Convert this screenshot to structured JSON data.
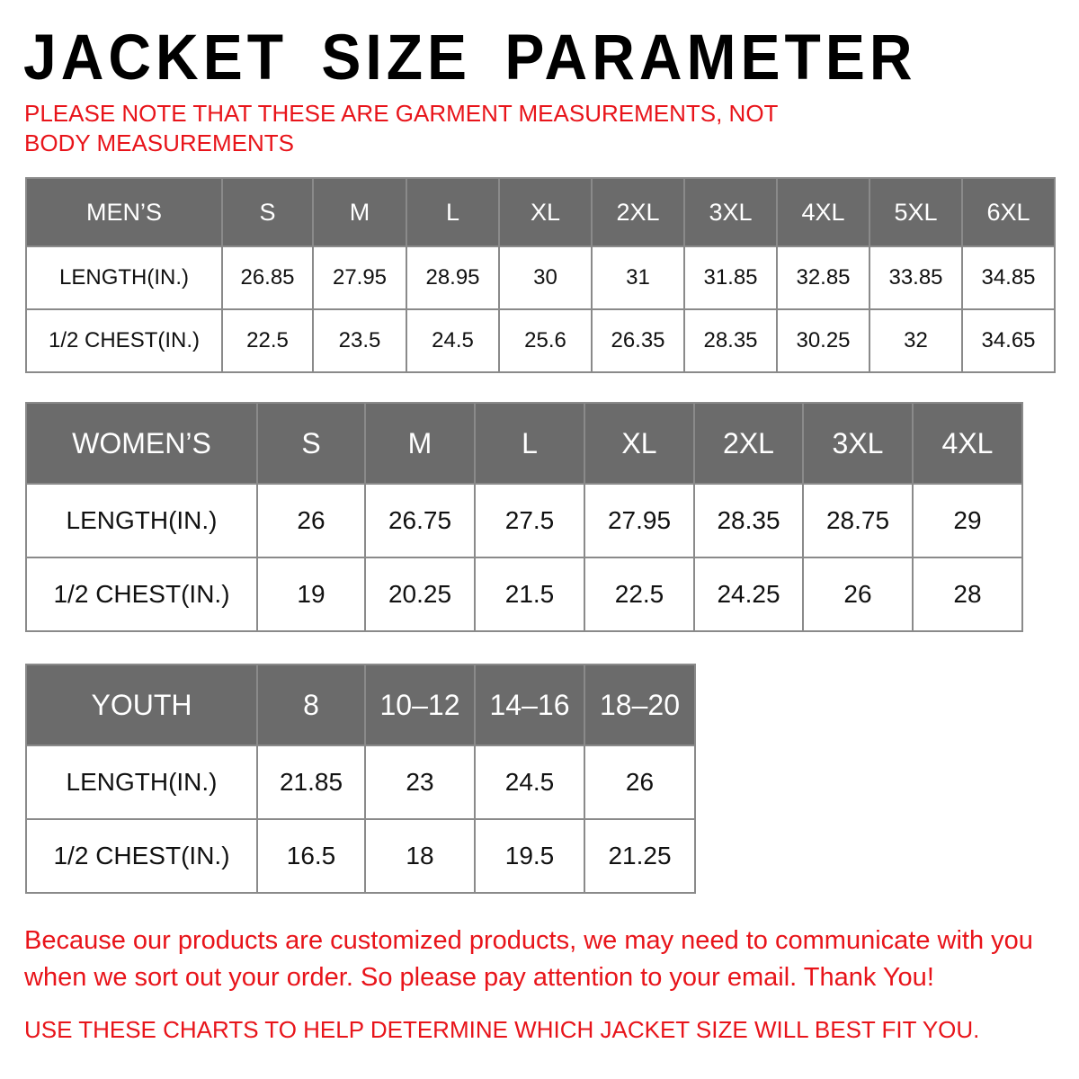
{
  "title": "JACKET SIZE PARAMETER",
  "note": "PLEASE NOTE THAT THESE ARE GARMENT MEASUREMENTS, NOT BODY MEASUREMENTS",
  "colors": {
    "header_bg": "#6b6b6b",
    "accent_red": "#e8141a"
  },
  "tables": {
    "men": {
      "headers": [
        "MEN’S",
        "S",
        "M",
        "L",
        "XL",
        "2XL",
        "3XL",
        "4XL",
        "5XL",
        "6XL"
      ],
      "rows": [
        [
          "LENGTH(IN.)",
          "26.85",
          "27.95",
          "28.95",
          "30",
          "31",
          "31.85",
          "32.85",
          "33.85",
          "34.85"
        ],
        [
          "1/2 CHEST(IN.)",
          "22.5",
          "23.5",
          "24.5",
          "25.6",
          "26.35",
          "28.35",
          "30.25",
          "32",
          "34.65"
        ]
      ]
    },
    "women": {
      "headers": [
        "WOMEN’S",
        "S",
        "M",
        "L",
        "XL",
        "2XL",
        "3XL",
        "4XL"
      ],
      "rows": [
        [
          "LENGTH(IN.)",
          "26",
          "26.75",
          "27.5",
          "27.95",
          "28.35",
          "28.75",
          "29"
        ],
        [
          "1/2 CHEST(IN.)",
          "19",
          "20.25",
          "21.5",
          "22.5",
          "24.25",
          "26",
          "28"
        ]
      ]
    },
    "youth": {
      "headers": [
        "YOUTH",
        "8",
        "10–12",
        "14–16",
        "18–20"
      ],
      "rows": [
        [
          "LENGTH(IN.)",
          "21.85",
          "23",
          "24.5",
          "26"
        ],
        [
          "1/2 CHEST(IN.)",
          "16.5",
          "18",
          "19.5",
          "21.25"
        ]
      ]
    }
  },
  "footer": {
    "message": "Because our products are customized products, we may need to communicate with you when we sort out your order. So please pay attention to your email. Thank You!",
    "instruction": "USE THESE CHARTS TO HELP DETERMINE WHICH JACKET SIZE WILL BEST FIT YOU."
  }
}
